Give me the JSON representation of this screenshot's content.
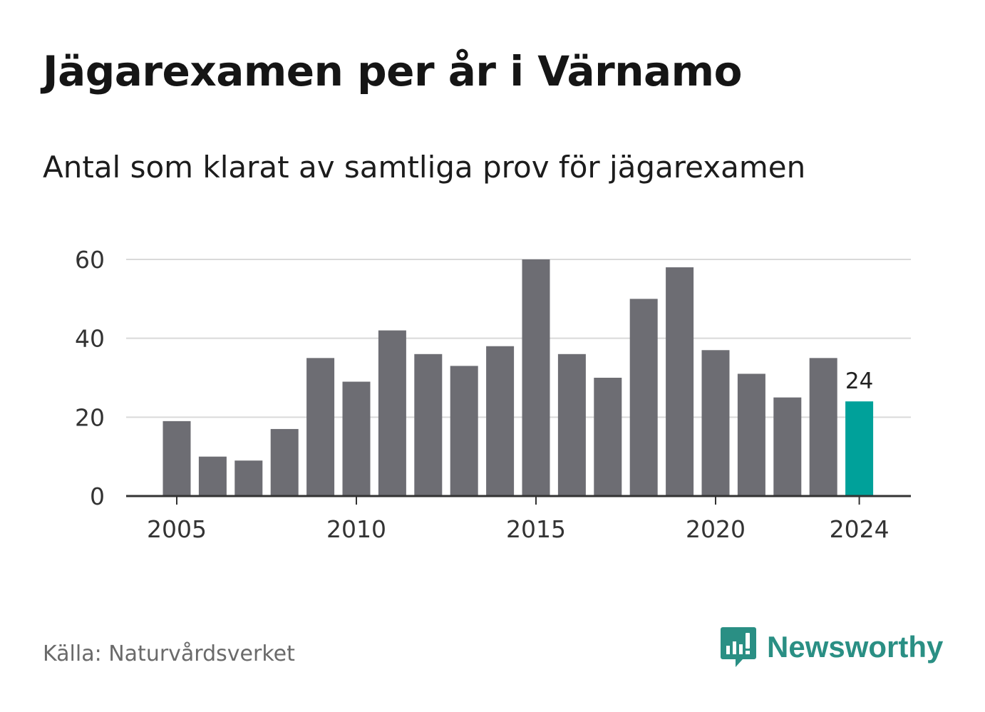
{
  "title": "Jägarexamen per år i Värnamo",
  "subtitle": "Antal som klarat av samtliga prov för jägarexamen",
  "source": "Källa: Naturvårdsverket",
  "brand": {
    "name": "Newsworthy",
    "icon": "newsworthy-logo-icon"
  },
  "colors": {
    "bar": "#6d6d73",
    "highlight": "#00a19a",
    "grid": "#d9d9d9",
    "axis": "#333333",
    "brand": "#2a8f84"
  },
  "chart_data": {
    "type": "bar",
    "categories": [
      "2005",
      "2006",
      "2007",
      "2008",
      "2009",
      "2010",
      "2011",
      "2012",
      "2013",
      "2014",
      "2015",
      "2016",
      "2017",
      "2018",
      "2019",
      "2020",
      "2021",
      "2022",
      "2023",
      "2024"
    ],
    "values": [
      19,
      10,
      9,
      17,
      35,
      29,
      42,
      36,
      33,
      38,
      60,
      36,
      30,
      50,
      58,
      37,
      31,
      25,
      35,
      24
    ],
    "x_tick_labels": [
      "2005",
      "2010",
      "2015",
      "2020",
      "2024"
    ],
    "y_ticks": [
      0,
      20,
      40,
      60
    ],
    "ylim": [
      0,
      60
    ],
    "grid": true,
    "highlight": {
      "category": "2024",
      "value": 24,
      "label": "24"
    },
    "xlabel": "",
    "ylabel": ""
  }
}
